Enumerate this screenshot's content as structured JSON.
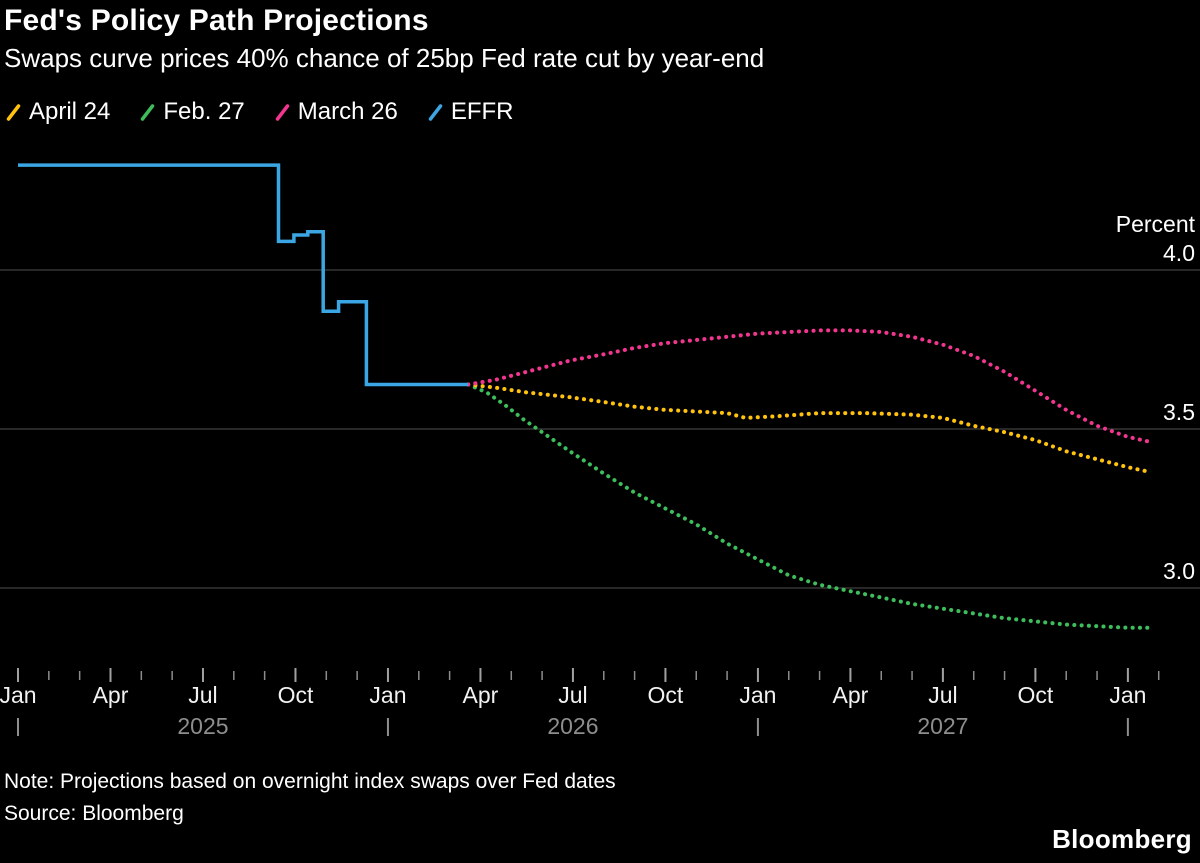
{
  "header": {
    "title": "Fed's Policy Path Projections",
    "subtitle": "Swaps curve prices 40% chance of 25bp Fed rate cut by year-end"
  },
  "legend": {
    "items": [
      {
        "label": "April 24",
        "color": "#FFC20E"
      },
      {
        "label": "Feb. 27",
        "color": "#3DBD5B"
      },
      {
        "label": "March 26",
        "color": "#F0368E"
      },
      {
        "label": "EFFR",
        "color": "#3BA6E3"
      }
    ]
  },
  "chart_data": {
    "type": "line",
    "title": "Fed's Policy Path Projections",
    "subtitle": "Swaps curve prices 40% chance of 25bp Fed rate cut by year-end",
    "y_axis": {
      "title": "Percent",
      "ticks": [
        "4.0",
        "3.5",
        "3.0"
      ],
      "tick_values": [
        4.0,
        3.5,
        3.0
      ],
      "grid": true
    },
    "x_axis": {
      "unit": "months since Jan 2025",
      "months": [
        "Jan",
        "Apr",
        "Jul",
        "Oct",
        "Jan",
        "Apr",
        "Jul",
        "Oct",
        "Jan",
        "Apr",
        "Jul",
        "Oct",
        "Jan"
      ],
      "month_positions": [
        0,
        3,
        6,
        9,
        12,
        15,
        18,
        21,
        24,
        27,
        30,
        33,
        36
      ],
      "minor_tick_every_month": true,
      "years": [
        {
          "label": "2025",
          "pos": 6
        },
        {
          "label": "2026",
          "pos": 18
        },
        {
          "label": "2027",
          "pos": 30
        }
      ],
      "year_separator_positions": [
        0,
        12,
        24,
        36
      ]
    },
    "series": [
      {
        "name": "Feb. 27",
        "color": "#3DBD5B",
        "style": "dotted",
        "points": [
          [
            14.6,
            3.64
          ],
          [
            15.2,
            3.615
          ],
          [
            15.8,
            3.575
          ],
          [
            16.4,
            3.53
          ],
          [
            17.0,
            3.49
          ],
          [
            17.9,
            3.43
          ],
          [
            19,
            3.36
          ],
          [
            20,
            3.3
          ],
          [
            21,
            3.25
          ],
          [
            22,
            3.2
          ],
          [
            23,
            3.14
          ],
          [
            24,
            3.09
          ],
          [
            25,
            3.04
          ],
          [
            26,
            3.01
          ],
          [
            27,
            2.99
          ],
          [
            28,
            2.97
          ],
          [
            29,
            2.95
          ],
          [
            30,
            2.935
          ],
          [
            31,
            2.92
          ],
          [
            32,
            2.905
          ],
          [
            33,
            2.895
          ],
          [
            34,
            2.885
          ],
          [
            35,
            2.88
          ],
          [
            36,
            2.875
          ],
          [
            36.7,
            2.875
          ]
        ]
      },
      {
        "name": "April 24",
        "color": "#FFC20E",
        "style": "dotted",
        "points": [
          [
            14.6,
            3.64
          ],
          [
            15.5,
            3.63
          ],
          [
            16.5,
            3.615
          ],
          [
            17.9,
            3.6
          ],
          [
            19,
            3.585
          ],
          [
            20,
            3.57
          ],
          [
            21,
            3.56
          ],
          [
            22,
            3.555
          ],
          [
            23,
            3.55
          ],
          [
            23.6,
            3.535
          ],
          [
            24.6,
            3.54
          ],
          [
            26,
            3.55
          ],
          [
            27.5,
            3.55
          ],
          [
            29,
            3.545
          ],
          [
            30,
            3.535
          ],
          [
            31,
            3.51
          ],
          [
            32,
            3.49
          ],
          [
            33,
            3.465
          ],
          [
            34,
            3.43
          ],
          [
            35,
            3.405
          ],
          [
            36,
            3.38
          ],
          [
            36.7,
            3.365
          ]
        ]
      },
      {
        "name": "March 26",
        "color": "#F0368E",
        "style": "dotted",
        "points": [
          [
            14.6,
            3.64
          ],
          [
            15.5,
            3.655
          ],
          [
            16.5,
            3.68
          ],
          [
            17.9,
            3.715
          ],
          [
            19,
            3.735
          ],
          [
            20,
            3.755
          ],
          [
            21,
            3.77
          ],
          [
            22,
            3.78
          ],
          [
            23,
            3.79
          ],
          [
            24,
            3.8
          ],
          [
            25,
            3.805
          ],
          [
            26,
            3.81
          ],
          [
            27,
            3.81
          ],
          [
            28,
            3.805
          ],
          [
            29,
            3.79
          ],
          [
            30,
            3.765
          ],
          [
            31,
            3.73
          ],
          [
            32,
            3.68
          ],
          [
            33,
            3.62
          ],
          [
            34,
            3.56
          ],
          [
            35,
            3.51
          ],
          [
            36,
            3.475
          ],
          [
            36.7,
            3.46
          ]
        ]
      },
      {
        "name": "EFFR",
        "color": "#3BA6E3",
        "style": "solid",
        "points": [
          [
            0,
            4.33
          ],
          [
            8.45,
            4.33
          ],
          [
            8.45,
            4.09
          ],
          [
            8.95,
            4.09
          ],
          [
            8.95,
            4.11
          ],
          [
            9.4,
            4.11
          ],
          [
            9.4,
            4.12
          ],
          [
            9.9,
            4.12
          ],
          [
            9.9,
            3.87
          ],
          [
            10.4,
            3.87
          ],
          [
            10.4,
            3.9
          ],
          [
            11.3,
            3.9
          ],
          [
            11.3,
            3.64
          ],
          [
            14.6,
            3.64
          ]
        ]
      }
    ]
  },
  "footer": {
    "note": "Note: Projections based on overnight index swaps over Fed dates",
    "source": "Source: Bloomberg",
    "brand": "Bloomberg"
  }
}
